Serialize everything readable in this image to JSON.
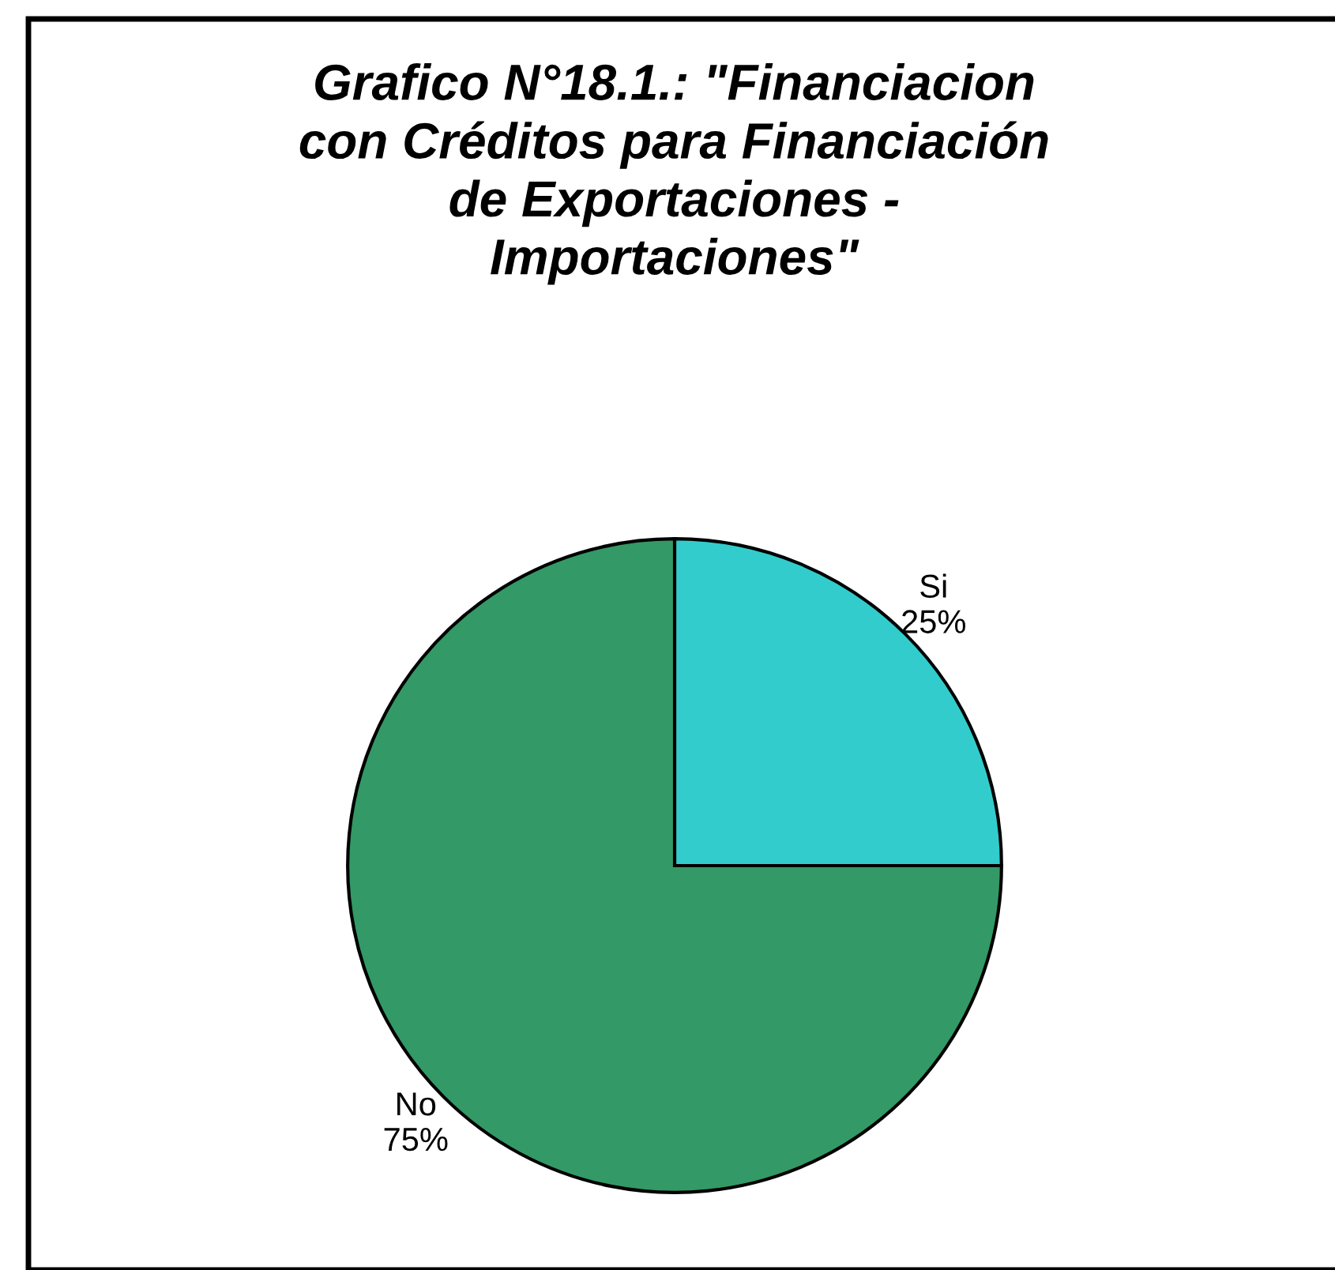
{
  "chart_data": {
    "type": "pie",
    "title": "Grafico N°18.1.: \"Financiacion\ncon Créditos para Financiación\nde Exportaciones -\nImportaciones\"",
    "categories": [
      "Si",
      "No"
    ],
    "values": [
      25,
      75
    ],
    "colors": [
      "#33cccc",
      "#339966"
    ],
    "value_labels": [
      "25%",
      "75%"
    ],
    "legend": false
  }
}
